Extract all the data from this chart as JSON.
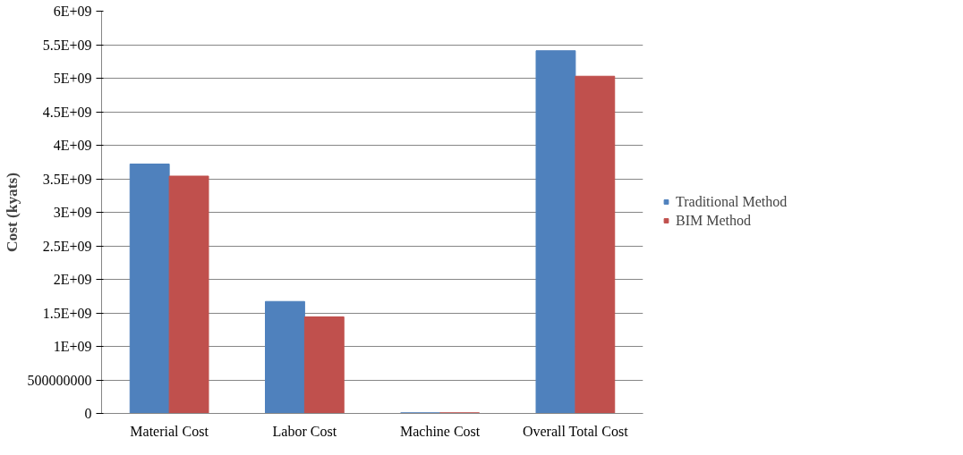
{
  "chart_data": {
    "type": "bar",
    "ylabel": "Cost (kyats)",
    "categories": [
      "Material Cost",
      "Labor Cost",
      "Machine Cost",
      "Overall Total Cost"
    ],
    "series": [
      {
        "name": "Traditional Method",
        "color": "#4f81bd",
        "values": [
          3720000000,
          1670000000,
          10000000,
          5410000000
        ]
      },
      {
        "name": "BIM Method",
        "color": "#c0504d",
        "values": [
          3540000000,
          1440000000,
          10000000,
          5030000000
        ]
      }
    ],
    "ylim": [
      0,
      6000000000
    ],
    "yticks": [
      {
        "value": 0,
        "label": "0"
      },
      {
        "value": 500000000,
        "label": "500000000"
      },
      {
        "value": 1000000000,
        "label": "1E+09"
      },
      {
        "value": 1500000000,
        "label": "1.5E+09"
      },
      {
        "value": 2000000000,
        "label": "2E+09"
      },
      {
        "value": 2500000000,
        "label": "2.5E+09"
      },
      {
        "value": 3000000000,
        "label": "3E+09"
      },
      {
        "value": 3500000000,
        "label": "3.5E+09"
      },
      {
        "value": 4000000000,
        "label": "4E+09"
      },
      {
        "value": 4500000000,
        "label": "4.5E+09"
      },
      {
        "value": 5000000000,
        "label": "5E+09"
      },
      {
        "value": 5500000000,
        "label": "5.5E+09"
      },
      {
        "value": 6000000000,
        "label": "6E+09"
      }
    ],
    "grid": "y",
    "legend": "right"
  }
}
